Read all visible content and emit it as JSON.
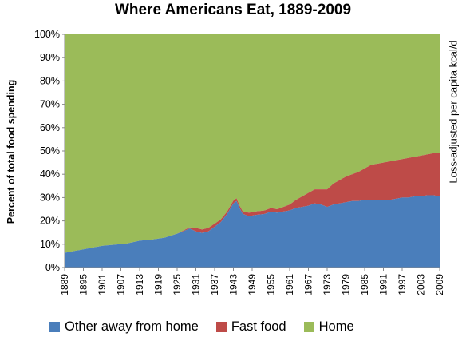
{
  "chart_data": {
    "type": "area",
    "stacked": true,
    "title": "Where Americans Eat, 1889-2009",
    "ylabel": "Percent of total food spending",
    "y2label": "Loss-adjusted per capita kcal/d",
    "ylim": [
      0,
      100
    ],
    "yticks": [
      "0%",
      "10%",
      "20%",
      "30%",
      "40%",
      "50%",
      "60%",
      "70%",
      "80%",
      "90%",
      "100%"
    ],
    "xlim": [
      1889,
      2009
    ],
    "xticks": [
      "1889",
      "1895",
      "1901",
      "1907",
      "1913",
      "1919",
      "1925",
      "1931",
      "1937",
      "1943",
      "1949",
      "1955",
      "1961",
      "1967",
      "1973",
      "1979",
      "1985",
      "1991",
      "1997",
      "2003",
      "2009"
    ],
    "grid": false,
    "legend_position": "bottom",
    "series": [
      {
        "name": "Other away from home",
        "color": "#4a7ebb",
        "x": [
          1889,
          1893,
          1897,
          1901,
          1905,
          1909,
          1913,
          1917,
          1921,
          1925,
          1929,
          1931,
          1933,
          1935,
          1937,
          1939,
          1941,
          1943,
          1944,
          1945,
          1946,
          1948,
          1950,
          1953,
          1955,
          1957,
          1959,
          1961,
          1963,
          1965,
          1967,
          1969,
          1971,
          1973,
          1975,
          1977,
          1979,
          1981,
          1983,
          1985,
          1987,
          1989,
          1991,
          1993,
          1995,
          1997,
          1999,
          2001,
          2003,
          2005,
          2007,
          2009
        ],
        "values": [
          6.3,
          7.3,
          8.3,
          9.3,
          9.8,
          10.3,
          11.5,
          12,
          12.8,
          14.5,
          16.7,
          15.5,
          14.8,
          15.5,
          17.5,
          19.5,
          23,
          27.5,
          28.5,
          25.5,
          23,
          22,
          22.5,
          23,
          24,
          23.5,
          24,
          24.5,
          25.5,
          26,
          26.5,
          27.5,
          27,
          26,
          27,
          27.5,
          28,
          28.5,
          28.5,
          29,
          29,
          29,
          29,
          29,
          29.5,
          30,
          30,
          30.5,
          30.5,
          31,
          31,
          30.5
        ]
      },
      {
        "name": "Fast food",
        "color": "#be4b48",
        "x": [
          1889,
          1925,
          1927,
          1929,
          1931,
          1933,
          1935,
          1937,
          1939,
          1941,
          1943,
          1944,
          1945,
          1946,
          1948,
          1950,
          1953,
          1955,
          1957,
          1959,
          1961,
          1963,
          1965,
          1967,
          1969,
          1971,
          1973,
          1975,
          1977,
          1979,
          1981,
          1983,
          1985,
          1987,
          1989,
          1991,
          1993,
          1995,
          1997,
          1999,
          2001,
          2003,
          2005,
          2007,
          2009
        ],
        "values": [
          0,
          0,
          0.3,
          0.5,
          1.5,
          1.5,
          1.5,
          1.3,
          1.2,
          1.0,
          1.2,
          1.2,
          1.0,
          1.0,
          1.5,
          1.5,
          1.5,
          1.5,
          1.5,
          2,
          2.5,
          3.5,
          4.5,
          5.5,
          6,
          6.5,
          7.5,
          9,
          10,
          11,
          11.5,
          12.5,
          13.5,
          15,
          15.5,
          16,
          16.5,
          16.5,
          16.5,
          17,
          17,
          17.5,
          17.5,
          18,
          18.5
        ]
      },
      {
        "name": "Home",
        "color": "#9bbb59",
        "values_note": ""
      }
    ]
  }
}
